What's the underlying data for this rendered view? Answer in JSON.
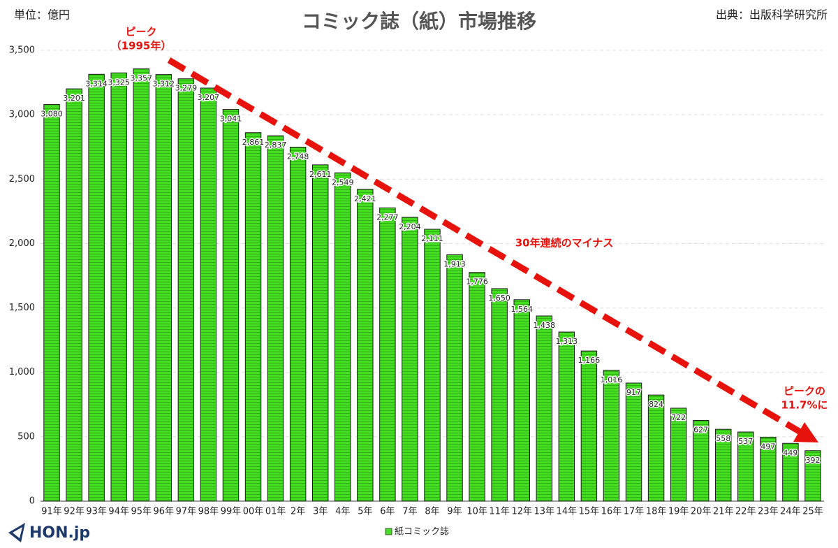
{
  "chart_data": {
    "type": "bar",
    "title": "コミック誌（紙）市場推移",
    "unit_label": "単位：億円",
    "source": "出典：出版科学研究所",
    "logo": "HON.jp",
    "series_name": "紙コミック誌",
    "color": "#44dd22",
    "annotations": [
      [
        "ピーク",
        "（1995年）"
      ],
      [
        "30年連続のマイナス"
      ],
      [
        "ピークの",
        "11.7%に"
      ]
    ],
    "categories": [
      "91年",
      "92年",
      "93年",
      "94年",
      "95年",
      "96年",
      "97年",
      "98年",
      "99年",
      "00年",
      "01年",
      "2年",
      "3年",
      "4年",
      "5年",
      "6年",
      "7年",
      "8年",
      "9年",
      "10年",
      "11年",
      "12年",
      "13年",
      "14年",
      "15年",
      "16年",
      "17年",
      "18年",
      "19年",
      "20年",
      "21年",
      "22年",
      "23年",
      "24年",
      "25年"
    ],
    "values": [
      3080,
      3201,
      3314,
      3325,
      3357,
      3312,
      3279,
      3207,
      3041,
      2861,
      2837,
      2748,
      2611,
      2549,
      2421,
      2277,
      2204,
      2111,
      1913,
      1776,
      1650,
      1564,
      1438,
      1313,
      1166,
      1016,
      917,
      824,
      722,
      627,
      558,
      537,
      497,
      449,
      392
    ],
    "value_labels": [
      "3,080",
      "3,201",
      "3,314",
      "3,325",
      "3,357",
      "3,312",
      "3,279",
      "3,207",
      "3,041",
      "2,861",
      "2,837",
      "2,748",
      "2,611",
      "2,549",
      "2,421",
      "2,277",
      "2,204",
      "2,111",
      "1,913",
      "1,776",
      "1,650",
      "1,564",
      "1,438",
      "1,313",
      "1,166",
      "1,016",
      "917",
      "824",
      "722",
      "627",
      "558",
      "537",
      "497",
      "449",
      "392"
    ],
    "ylim": [
      0,
      3500
    ],
    "yticks": [
      0,
      500,
      {
        "value": 1000,
        "label": "1,000"
      },
      {
        "value": 1500,
        "label": "1,500"
      },
      {
        "value": 2000,
        "label": "2,000"
      },
      {
        "value": 2500,
        "label": "2,500"
      },
      {
        "value": 3000,
        "label": "3,000"
      },
      {
        "value": 3500,
        "label": "3,500"
      }
    ],
    "grid": true
  }
}
